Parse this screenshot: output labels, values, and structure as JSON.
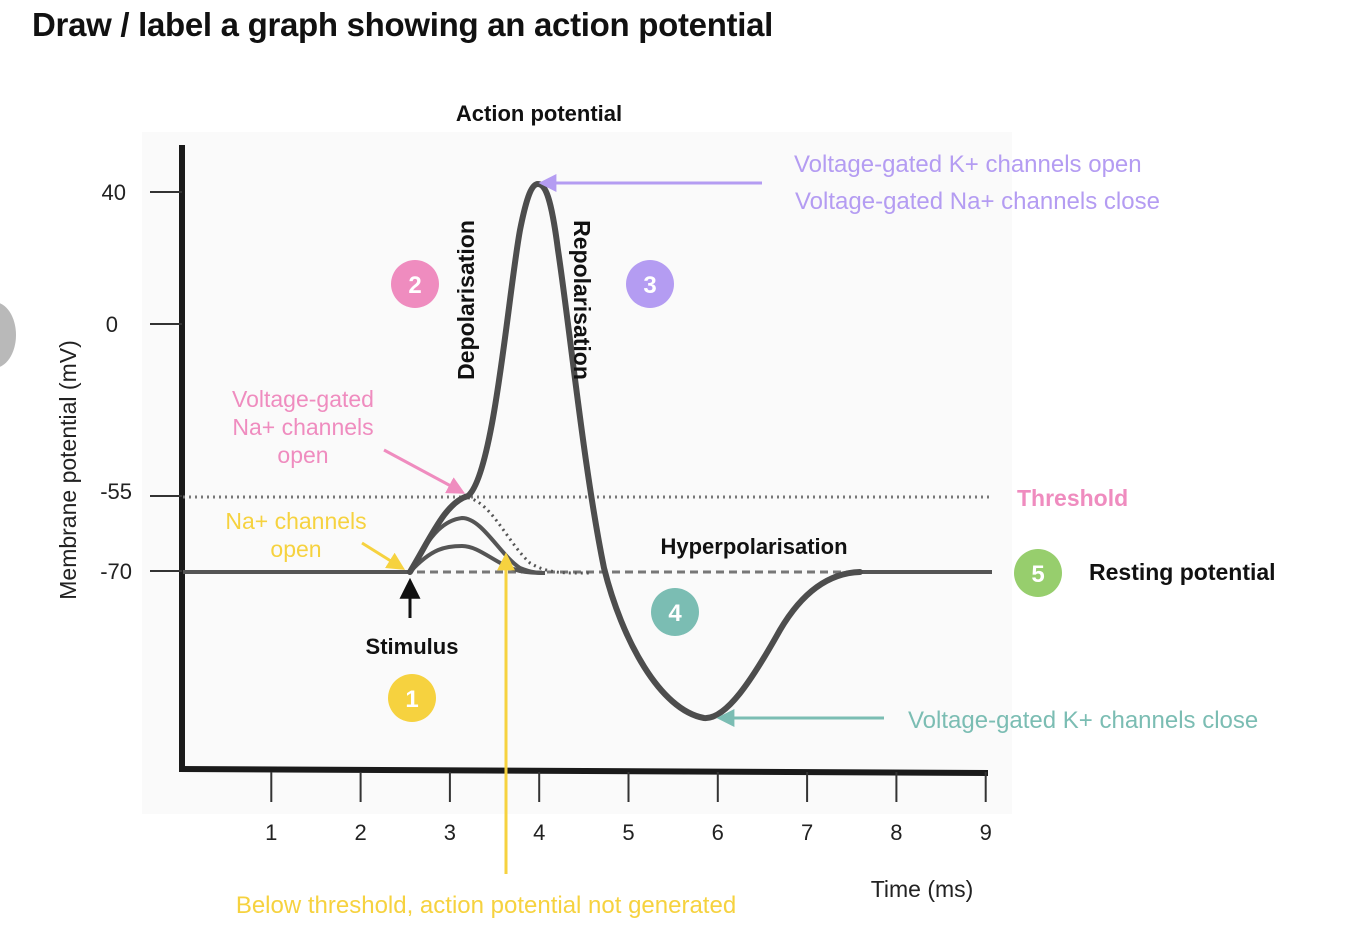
{
  "page": {
    "title": "Draw / label a graph showing an action potential"
  },
  "colors": {
    "curve": "#4d4d4d",
    "axis": "#1a1a1a",
    "pink": "#ef8cbf",
    "purple": "#b49cf2",
    "teal": "#7bbdb3",
    "yellow": "#f6d23f",
    "green": "#97ce6d"
  },
  "chart": {
    "title": "Action potential",
    "ylabel": "Membrane potential (mV)",
    "xlabel": "Time (ms)",
    "yticks": [
      {
        "value": 40,
        "label": "40"
      },
      {
        "value": 0,
        "label": "0"
      },
      {
        "value": -55,
        "label": "-55"
      },
      {
        "value": -70,
        "label": "-70"
      }
    ],
    "xticks": [
      "1",
      "2",
      "3",
      "4",
      "5",
      "6",
      "7",
      "8",
      "9"
    ]
  },
  "labels": {
    "threshold": "Threshold",
    "resting_potential": "Resting potential",
    "hyperpolarisation": "Hyperpolarisation",
    "depolarisation": "Depolarisation",
    "repolarisation": "Repolarisation",
    "stimulus": "Stimulus",
    "na_open_line1": "Na+ channels",
    "na_open_line2": "open",
    "vg_na_open_line1": "Voltage-gated",
    "vg_na_open_line2": "Na+ channels",
    "vg_na_open_line3": "open",
    "peak_line1": "Voltage-gated K+ channels open",
    "peak_line2": "Voltage-gated Na+ channels close",
    "k_close": "Voltage-gated K+ channels close",
    "below_threshold": "Below threshold, action potential not generated"
  },
  "steps": [
    {
      "number": "1",
      "color": "#f6d23f"
    },
    {
      "number": "2",
      "color": "#ef8cbf"
    },
    {
      "number": "3",
      "color": "#b49cf2"
    },
    {
      "number": "4",
      "color": "#7bbdb3"
    },
    {
      "number": "5",
      "color": "#97ce6d"
    }
  ]
}
